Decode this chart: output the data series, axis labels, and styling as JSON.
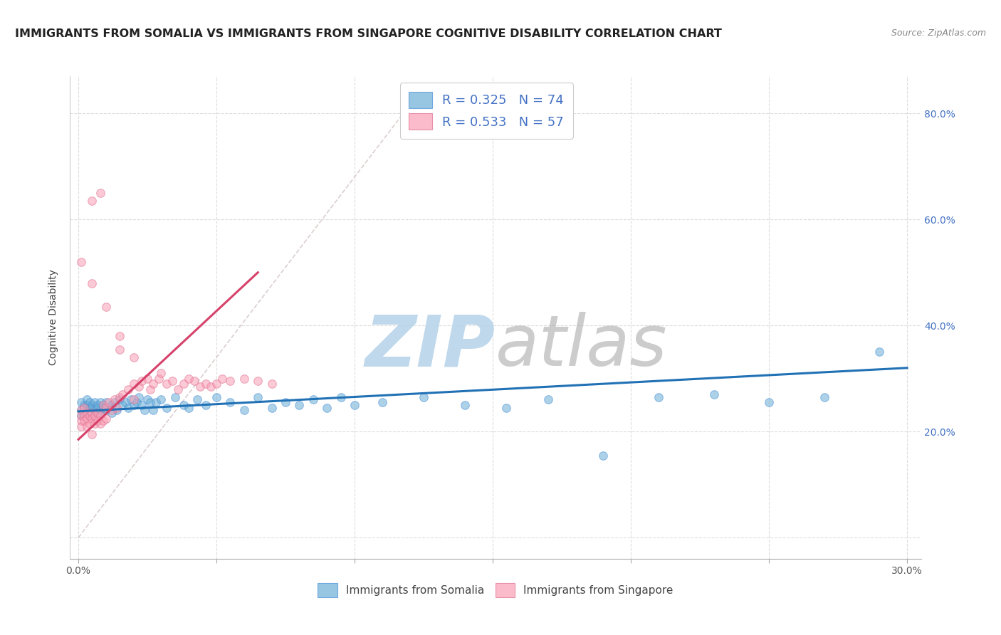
{
  "title": "IMMIGRANTS FROM SOMALIA VS IMMIGRANTS FROM SINGAPORE COGNITIVE DISABILITY CORRELATION CHART",
  "source": "Source: ZipAtlas.com",
  "ylabel": "Cognitive Disability",
  "xlim": [
    -0.003,
    0.305
  ],
  "ylim": [
    -0.04,
    0.87
  ],
  "xticks": [
    0.0,
    0.05,
    0.1,
    0.15,
    0.2,
    0.25,
    0.3
  ],
  "yticks": [
    0.0,
    0.2,
    0.4,
    0.6,
    0.8
  ],
  "color_somalia": "#6baed6",
  "color_singapore": "#fa9fb5",
  "color_somalia_edge": "#4a90d9",
  "color_singapore_edge": "#e07090",
  "color_trend_somalia": "#2171b5",
  "color_trend_singapore": "#d6416a",
  "color_refline": "#ccbbbb",
  "color_tick": "#4472c4",
  "somalia_x": [
    0.001,
    0.001,
    0.001,
    0.002,
    0.002,
    0.002,
    0.003,
    0.003,
    0.003,
    0.004,
    0.004,
    0.004,
    0.005,
    0.005,
    0.005,
    0.006,
    0.006,
    0.007,
    0.007,
    0.007,
    0.008,
    0.008,
    0.009,
    0.009,
    0.01,
    0.01,
    0.011,
    0.012,
    0.012,
    0.013,
    0.014,
    0.015,
    0.016,
    0.017,
    0.018,
    0.019,
    0.02,
    0.021,
    0.022,
    0.023,
    0.024,
    0.025,
    0.026,
    0.027,
    0.028,
    0.03,
    0.032,
    0.035,
    0.038,
    0.04,
    0.043,
    0.046,
    0.05,
    0.055,
    0.06,
    0.065,
    0.07,
    0.075,
    0.08,
    0.085,
    0.09,
    0.095,
    0.1,
    0.11,
    0.125,
    0.14,
    0.155,
    0.17,
    0.19,
    0.21,
    0.23,
    0.25,
    0.27,
    0.29
  ],
  "somalia_y": [
    0.24,
    0.255,
    0.23,
    0.245,
    0.25,
    0.235,
    0.25,
    0.24,
    0.26,
    0.245,
    0.23,
    0.255,
    0.235,
    0.25,
    0.245,
    0.255,
    0.24,
    0.25,
    0.235,
    0.245,
    0.255,
    0.24,
    0.25,
    0.245,
    0.24,
    0.255,
    0.245,
    0.25,
    0.235,
    0.255,
    0.24,
    0.26,
    0.25,
    0.255,
    0.245,
    0.26,
    0.25,
    0.255,
    0.265,
    0.25,
    0.24,
    0.26,
    0.255,
    0.24,
    0.255,
    0.26,
    0.245,
    0.265,
    0.25,
    0.245,
    0.26,
    0.25,
    0.265,
    0.255,
    0.24,
    0.265,
    0.245,
    0.255,
    0.25,
    0.26,
    0.245,
    0.265,
    0.25,
    0.255,
    0.265,
    0.25,
    0.245,
    0.26,
    0.155,
    0.265,
    0.27,
    0.255,
    0.265,
    0.35
  ],
  "singapore_x": [
    0.001,
    0.001,
    0.001,
    0.001,
    0.002,
    0.002,
    0.002,
    0.003,
    0.003,
    0.003,
    0.004,
    0.004,
    0.005,
    0.005,
    0.005,
    0.006,
    0.006,
    0.007,
    0.007,
    0.008,
    0.008,
    0.009,
    0.009,
    0.01,
    0.01,
    0.011,
    0.012,
    0.013,
    0.014,
    0.015,
    0.015,
    0.016,
    0.018,
    0.02,
    0.02,
    0.022,
    0.023,
    0.025,
    0.026,
    0.027,
    0.029,
    0.03,
    0.032,
    0.034,
    0.036,
    0.038,
    0.04,
    0.042,
    0.044,
    0.046,
    0.048,
    0.05,
    0.052,
    0.055,
    0.06,
    0.065,
    0.07
  ],
  "singapore_y": [
    0.24,
    0.23,
    0.22,
    0.21,
    0.23,
    0.245,
    0.22,
    0.235,
    0.225,
    0.21,
    0.23,
    0.215,
    0.235,
    0.225,
    0.195,
    0.23,
    0.215,
    0.235,
    0.22,
    0.23,
    0.215,
    0.25,
    0.22,
    0.245,
    0.225,
    0.255,
    0.24,
    0.26,
    0.245,
    0.355,
    0.265,
    0.27,
    0.28,
    0.29,
    0.26,
    0.285,
    0.295,
    0.3,
    0.28,
    0.29,
    0.3,
    0.31,
    0.29,
    0.295,
    0.28,
    0.29,
    0.3,
    0.295,
    0.285,
    0.29,
    0.285,
    0.29,
    0.3,
    0.295,
    0.3,
    0.295,
    0.29
  ],
  "singapore_outliers_x": [
    0.001,
    0.005,
    0.01,
    0.015,
    0.02,
    0.005,
    0.008
  ],
  "singapore_outliers_y": [
    0.52,
    0.48,
    0.435,
    0.38,
    0.34,
    0.635,
    0.65
  ],
  "somalia_trend_x": [
    0.0,
    0.3
  ],
  "somalia_trend_y": [
    0.238,
    0.32
  ],
  "singapore_trend_x": [
    0.0,
    0.065
  ],
  "singapore_trend_y": [
    0.185,
    0.5
  ],
  "ref_line_x": [
    0.0,
    0.125
  ],
  "ref_line_y": [
    0.0,
    0.85
  ],
  "title_fontsize": 11.5,
  "source_fontsize": 9,
  "tick_fontsize": 10,
  "ylabel_fontsize": 10
}
